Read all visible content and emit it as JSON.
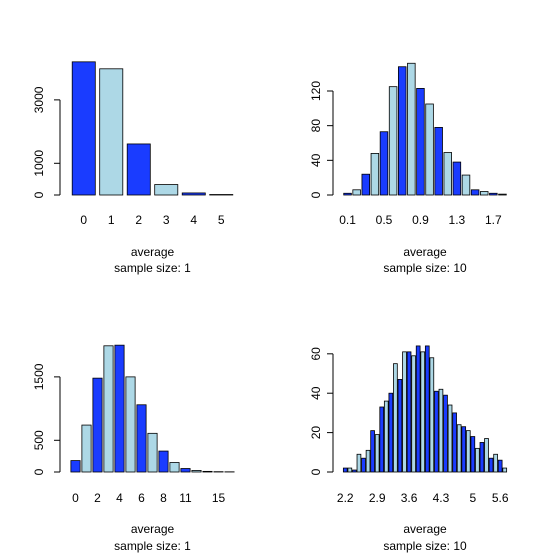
{
  "colors": {
    "dark": "#1a3cff",
    "light": "#add8e6",
    "border": "#000000"
  },
  "chart_data": [
    {
      "type": "bar",
      "xlabel": "average",
      "sublabel": "sample size: 1",
      "ylim": [
        0,
        4100
      ],
      "yticks": [
        0,
        1000,
        3000
      ],
      "categories": [
        "0",
        "1",
        "2",
        "3",
        "4",
        "5"
      ],
      "category_labels": [
        "0",
        "1",
        "2",
        "3",
        "4",
        "5"
      ],
      "values": [
        4200,
        3980,
        1610,
        330,
        65,
        15
      ]
    },
    {
      "type": "bar",
      "xlabel": "average",
      "sublabel": "sample size: 10",
      "ylim": [
        0,
        150
      ],
      "yticks": [
        0,
        40,
        80,
        120
      ],
      "categories": [
        "0.1",
        "0.2",
        "0.3",
        "0.4",
        "0.5",
        "0.6",
        "0.7",
        "0.8",
        "0.9",
        "1",
        "1.1",
        "1.2",
        "1.3",
        "1.4",
        "1.5",
        "1.6",
        "1.7",
        "1.8"
      ],
      "category_labels": [
        "0.1",
        "",
        "",
        "",
        "0.5",
        "",
        "",
        "",
        "0.9",
        "",
        "",
        "",
        "1.3",
        "",
        "",
        "",
        "1.7",
        ""
      ],
      "values": [
        2,
        6,
        24,
        48,
        73,
        125,
        148,
        152,
        123,
        105,
        78,
        49,
        38,
        23,
        6,
        4,
        2,
        1
      ]
    },
    {
      "type": "bar",
      "xlabel": "average",
      "sublabel": "sample size: 1",
      "ylim": [
        0,
        2050
      ],
      "yticks": [
        0,
        500,
        1500
      ],
      "categories": [
        "0",
        "1",
        "2",
        "3",
        "4",
        "5",
        "6",
        "7",
        "8",
        "9",
        "11",
        "12",
        "13",
        "15",
        "16"
      ],
      "category_labels": [
        "0",
        "",
        "2",
        "",
        "4",
        "",
        "6",
        "",
        "8",
        "",
        "11",
        "",
        "",
        "15",
        ""
      ],
      "values": [
        180,
        740,
        1480,
        1990,
        2000,
        1500,
        1060,
        610,
        330,
        150,
        55,
        25,
        10,
        5,
        3
      ]
    },
    {
      "type": "bar",
      "xlabel": "average",
      "sublabel": "sample size: 10",
      "ylim": [
        0,
        66
      ],
      "yticks": [
        0,
        20,
        40,
        60
      ],
      "categories": [
        "2.2",
        "2.3",
        "2.4",
        "2.5",
        "2.6",
        "2.7",
        "2.8",
        "2.9",
        "3",
        "3.1",
        "3.2",
        "3.3",
        "3.4",
        "3.5",
        "3.6",
        "3.7",
        "3.8",
        "3.9",
        "4",
        "4.1",
        "4.2",
        "4.3",
        "4.4",
        "4.5",
        "4.6",
        "4.7",
        "4.8",
        "4.9",
        "5",
        "5.1",
        "5.2",
        "5.3",
        "5.4",
        "5.5",
        "5.6",
        "5.7"
      ],
      "category_labels": [
        "2.2",
        "",
        "",
        "",
        "",
        "",
        "",
        "2.9",
        "",
        "",
        "",
        "",
        "",
        "",
        "3.6",
        "",
        "",
        "",
        "",
        "",
        "",
        "4.3",
        "",
        "",
        "",
        "",
        "",
        "",
        "5",
        "",
        "",
        "",
        "",
        "",
        "5.6",
        ""
      ],
      "values": [
        2,
        2,
        1,
        9,
        7,
        11,
        21,
        19,
        33,
        36,
        40,
        55,
        47,
        61,
        61,
        59,
        64,
        61,
        64,
        58,
        41,
        42,
        39,
        34,
        30,
        24,
        23,
        21,
        18,
        12,
        15,
        17,
        7,
        9,
        6,
        2
      ]
    }
  ]
}
